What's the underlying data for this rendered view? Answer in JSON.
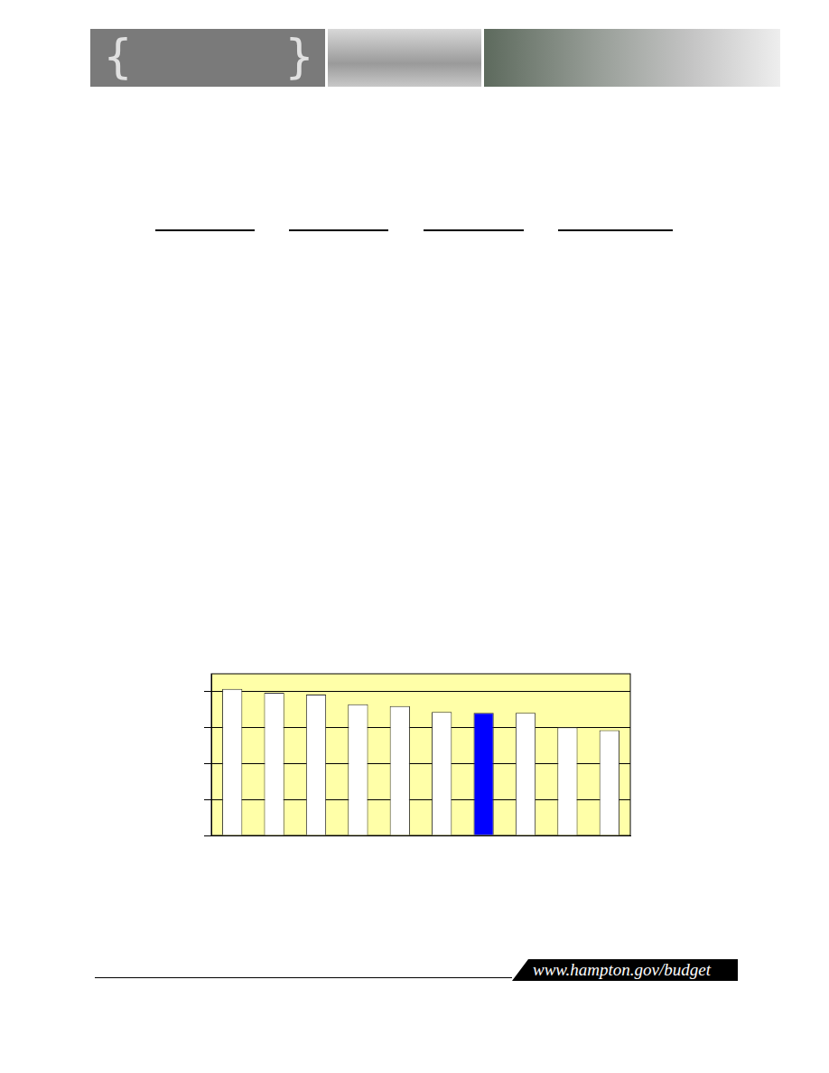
{
  "header_braces": [
    "{",
    "}"
  ],
  "footer": "www.hampton.gov/budget",
  "chart_data": {
    "type": "bar",
    "categories": [
      null,
      null,
      null,
      null,
      null,
      null,
      null,
      null,
      null,
      null
    ],
    "values": [
      4.08,
      3.97,
      3.92,
      3.65,
      3.6,
      3.44,
      3.41,
      3.41,
      3.01,
      2.93
    ],
    "colors": [
      "#ffffff",
      "#ffffff",
      "#ffffff",
      "#ffffff",
      "#ffffff",
      "#ffffff",
      "#0000ff",
      "#ffffff",
      "#ffffff",
      "#ffffff"
    ],
    "ylim": [
      0,
      4.5
    ],
    "yticks": [
      0,
      1,
      2,
      3,
      4
    ],
    "grid": true,
    "tick_labels": false
  }
}
